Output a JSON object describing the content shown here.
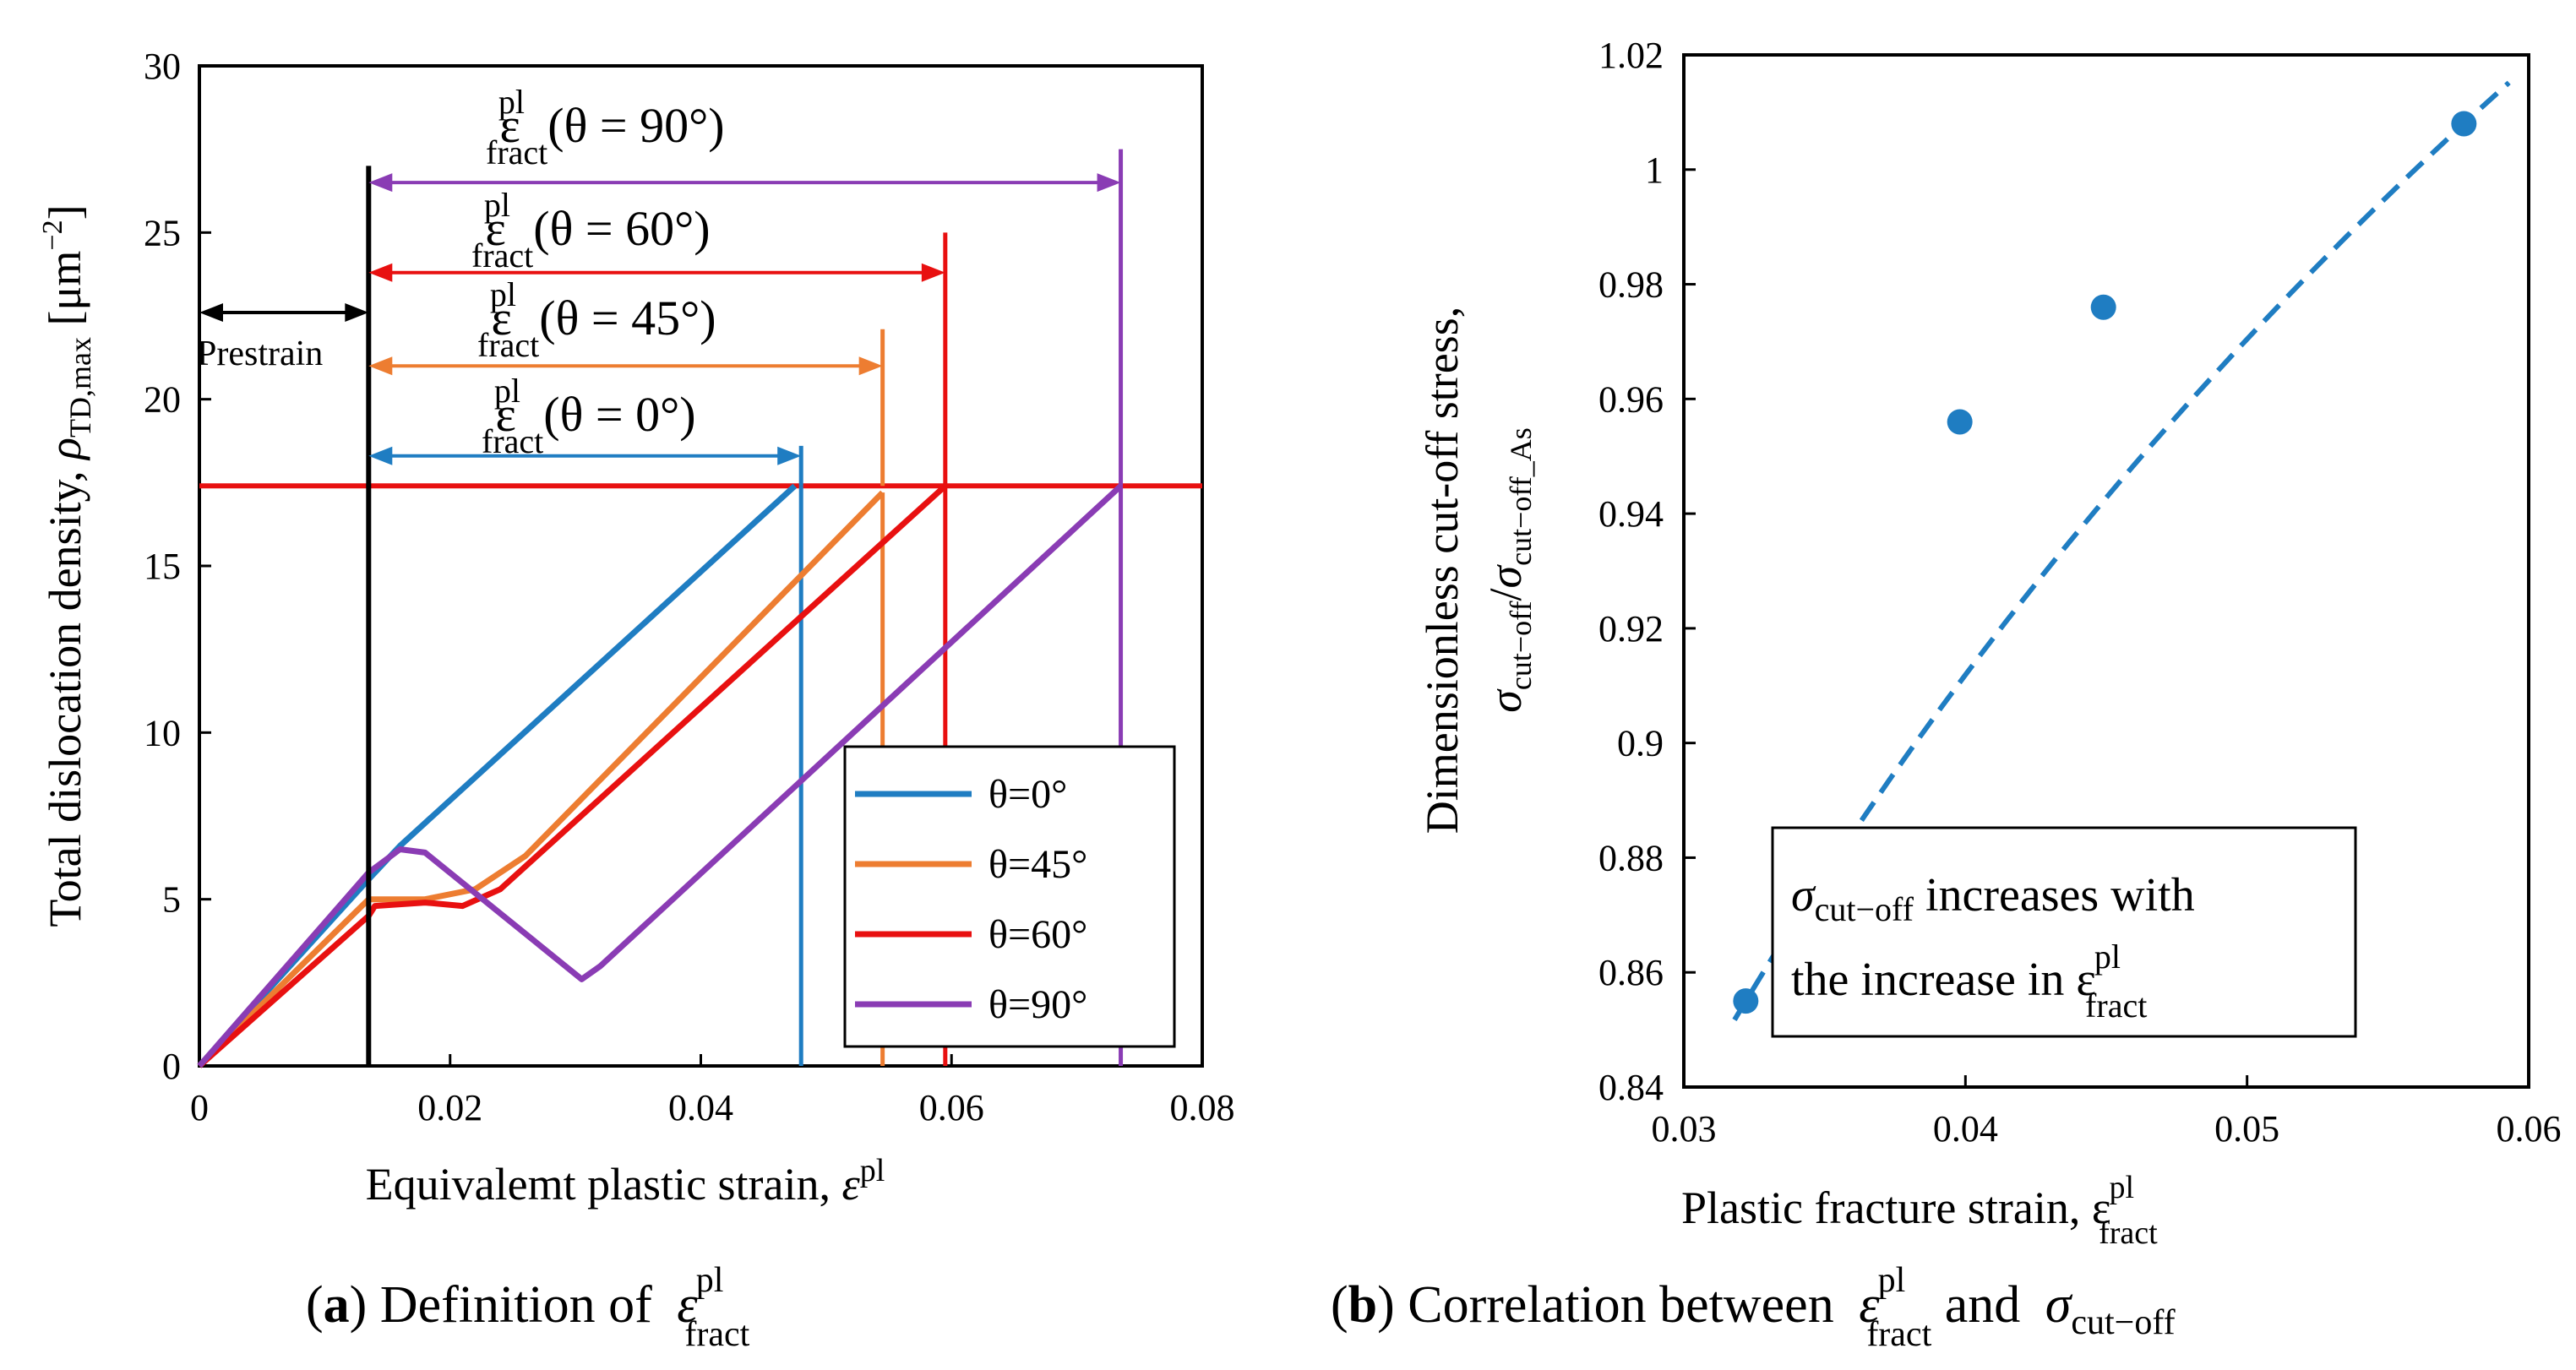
{
  "chart_data": [
    {
      "type": "line",
      "panel": "a",
      "xlabel": "Equivalemt plastic strain, ε^pl",
      "ylabel": "Total dislocation density, ρTD,max [μm⁻²]",
      "xlim": [
        0,
        0.08
      ],
      "ylim": [
        0,
        30
      ],
      "x_ticks": [
        "0",
        "0.02",
        "0.04",
        "0.06",
        "0.08"
      ],
      "y_ticks": [
        "0",
        "5",
        "10",
        "15",
        "20",
        "25",
        "30"
      ],
      "series": [
        {
          "name": "θ=0°",
          "color": "#1f7dc2",
          "points": [
            [
              0,
              0
            ],
            [
              0.0135,
              5.6
            ],
            [
              0.016,
              6.6
            ],
            [
              0.0475,
              17.4
            ]
          ],
          "fracture_strain": 0.048
        },
        {
          "name": "θ=45°",
          "color": "#ed7d31",
          "points": [
            [
              0,
              0
            ],
            [
              0.0135,
              5.0
            ],
            [
              0.018,
              5.0
            ],
            [
              0.022,
              5.3
            ],
            [
              0.026,
              6.3
            ],
            [
              0.0545,
              17.2
            ]
          ],
          "fracture_strain": 0.0545
        },
        {
          "name": "θ=60°",
          "color": "#e81010",
          "points": [
            [
              0,
              0
            ],
            [
              0.0135,
              4.5
            ],
            [
              0.014,
              4.8
            ],
            [
              0.018,
              4.9
            ],
            [
              0.021,
              4.8
            ],
            [
              0.024,
              5.3
            ],
            [
              0.0595,
              17.4
            ]
          ],
          "fracture_strain": 0.0595
        },
        {
          "name": "θ=90°",
          "color": "#8a3cb4",
          "points": [
            [
              0,
              0
            ],
            [
              0.0135,
              5.8
            ],
            [
              0.016,
              6.5
            ],
            [
              0.018,
              6.4
            ],
            [
              0.0305,
              2.6
            ],
            [
              0.032,
              3.0
            ],
            [
              0.0735,
              17.4
            ]
          ],
          "fracture_strain": 0.0735
        }
      ],
      "critical_density": 17.4,
      "prestrain": 0.0135,
      "prestrain_label": "Prestrain",
      "annotations": [
        {
          "label": "ε^pl_fract(θ = 90°)",
          "end": 0.0735,
          "color": "#8a3cb4"
        },
        {
          "label": "ε^pl_fract(θ = 60°)",
          "end": 0.0595,
          "color": "#e81010"
        },
        {
          "label": "ε^pl_fract(θ = 45°)",
          "end": 0.0545,
          "color": "#ed7d31"
        },
        {
          "label": "ε^pl_fract(θ = 0°)",
          "end": 0.048,
          "color": "#1f7dc2"
        }
      ],
      "caption": "(a) Definition of ε^pl_fract"
    },
    {
      "type": "scatter",
      "panel": "b",
      "xlabel": "Plastic fracture strain, ε^pl_fract",
      "ylabel_line1": "Dimensionless cut-off stress,",
      "ylabel_line2": "σcut−off/σcut−off_As",
      "xlim": [
        0.03,
        0.06
      ],
      "ylim": [
        0.84,
        1.02
      ],
      "x_ticks": [
        "0.03",
        "0.04",
        "0.05",
        "0.06"
      ],
      "y_ticks": [
        "0.84",
        "0.86",
        "0.88",
        "0.9",
        "0.92",
        "0.94",
        "0.96",
        "0.98",
        "1",
        "1.02"
      ],
      "points": [
        [
          0.0322,
          0.855
        ],
        [
          0.0398,
          0.956
        ],
        [
          0.0449,
          0.976
        ],
        [
          0.0577,
          1.008
        ]
      ],
      "trend": "logarithmic fit, dashed",
      "annotation_line1": "σcut−off increases with",
      "annotation_line2": "the increase in ε^pl_fract",
      "caption": "(b) Correlation between ε^pl_fract and σcut−off"
    }
  ],
  "colors": {
    "blue": "#1f7dc2",
    "orange": "#ed7d31",
    "red": "#e81010",
    "purple": "#8a3cb4",
    "marker": "#1f7dc2"
  },
  "text": {
    "a_xlabel_main": "Equivalemt plastic strain, ",
    "a_ylabel_main": "Total dislocation density, ",
    "a_ylabel_unit": "[μm",
    "a_ylabel_exp": "−2",
    "a_ylabel_close": "]",
    "sym_eps": "ε",
    "sym_rho": "ρ",
    "sym_sigma": "σ",
    "sup_pl": "pl",
    "sub_fract": "fract",
    "sub_td": "TD,max",
    "sub_cut": "cut−off",
    "sub_cut_as": "cut−off_As",
    "theta_90": "(θ = 90°)",
    "theta_60": "(θ = 60°)",
    "theta_45": "(θ = 45°)",
    "theta_0": "(θ = 0°)",
    "b_xlabel_main": "Plastic fracture strain, ",
    "b_ylabel_line1": "Dimensionless cut-off stress,",
    "slash": "/",
    "b_ann_1_tail": " increases with",
    "b_ann_2_head": "the increase in ",
    "cap_a_letter": "a",
    "cap_a_rest": ") Definition of ",
    "cap_b_letter": "b",
    "cap_b_rest": ") Correlation between ",
    "cap_b_and": " and ",
    "paren_open": "("
  }
}
